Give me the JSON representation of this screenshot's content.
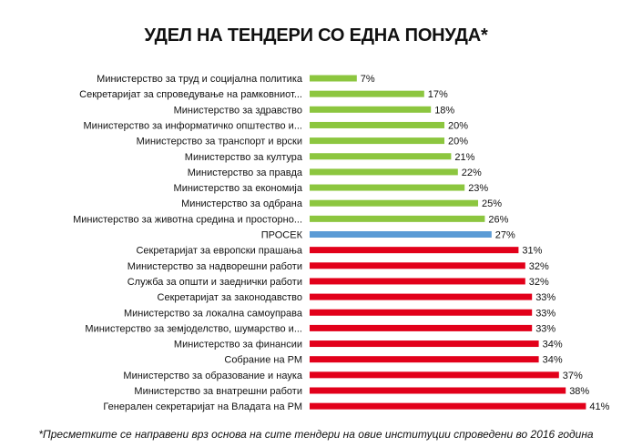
{
  "chart_data": {
    "type": "bar",
    "orientation": "horizontal",
    "title": "УДЕЛ НА ТЕНДЕРИ СО ЕДНА ПОНУДА*",
    "footnote": "*Пресметките се направени врз основа на сите тендери на овие институции спроведени во 2016 година",
    "value_suffix": "%",
    "grid": false,
    "categories": [
      "Министерство за труд и социјална  политика",
      "Секретаријат  за спроведување  на рамковниот...",
      "Министерство за здравство",
      "Министерство за информатичко општество и...",
      "Министерство за транспорт  и врски",
      "Министерство за култура",
      "Министерство за правда",
      "Министерство за економија",
      "Министерство за одбрана",
      "Министерство за животна средина и просторно...",
      "ПРОСЕК",
      "Секретаријат  за европски  прашања",
      "Министерство за надворешни  работи",
      "Служба за општи и заеднички работи",
      "Секретаријат  за законодавство",
      "Министерство за локална  самоуправа",
      "Министерство за земјоделство, шумарство и...",
      "Министерство за финансии",
      "Собрание  на РМ",
      "Министерство за образование  и наука",
      "Министерство за внатрешни  работи",
      "Генерален  секретаријат  на Владата на РМ"
    ],
    "values": [
      7,
      17,
      18,
      20,
      20,
      21,
      22,
      23,
      25,
      26,
      27,
      31,
      32,
      32,
      33,
      33,
      33,
      34,
      34,
      37,
      38,
      41
    ],
    "groups": [
      "low",
      "low",
      "low",
      "low",
      "low",
      "low",
      "low",
      "low",
      "low",
      "low",
      "average",
      "high",
      "high",
      "high",
      "high",
      "high",
      "high",
      "high",
      "high",
      "high",
      "high",
      "high"
    ],
    "colors": {
      "low": "#8cc63f",
      "average": "#5b9bd5",
      "high": "#e2001a"
    },
    "xlim": [
      0,
      45
    ]
  }
}
